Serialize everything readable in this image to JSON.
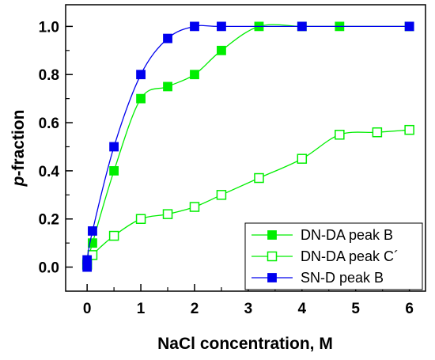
{
  "chart_data": {
    "type": "line",
    "xlabel": "NaCl concentration, M",
    "ylabel_italic": "p",
    "ylabel_rest": "-fraction",
    "xlim": [
      -0.4,
      6.3
    ],
    "ylim": [
      -0.1,
      1.09
    ],
    "x_ticks": [
      0,
      1,
      2,
      3,
      4,
      5,
      6
    ],
    "x_tick_labels": [
      "0",
      "1",
      "2",
      "3",
      "4",
      "5",
      "6"
    ],
    "y_ticks": [
      0.0,
      0.2,
      0.4,
      0.6,
      0.8,
      1.0
    ],
    "y_tick_labels": [
      "0.0",
      "0.2",
      "0.4",
      "0.6",
      "0.8",
      "1.0"
    ],
    "grid": false,
    "legend_position": "bottom-right",
    "series": [
      {
        "name": "DN-DA peak B",
        "color": "#00ee00",
        "marker": "filled-square",
        "points": [
          [
            0,
            0.02
          ],
          [
            0.1,
            0.1
          ],
          [
            0.5,
            0.4
          ],
          [
            1.0,
            0.7
          ],
          [
            1.5,
            0.75
          ],
          [
            2.0,
            0.8
          ],
          [
            2.5,
            0.9
          ],
          [
            3.2,
            1.0
          ],
          [
            4.0,
            1.0
          ],
          [
            4.7,
            1.0
          ],
          [
            6.0,
            1.0
          ]
        ]
      },
      {
        "name": "DN-DA peak C´",
        "color": "#00ee00",
        "marker": "open-square",
        "points": [
          [
            0,
            0.01
          ],
          [
            0.1,
            0.05
          ],
          [
            0.5,
            0.13
          ],
          [
            1.0,
            0.2
          ],
          [
            1.5,
            0.22
          ],
          [
            2.0,
            0.25
          ],
          [
            2.5,
            0.3
          ],
          [
            3.2,
            0.37
          ],
          [
            4.0,
            0.45
          ],
          [
            4.7,
            0.55
          ],
          [
            5.4,
            0.56
          ],
          [
            6.0,
            0.57
          ]
        ]
      },
      {
        "name": "SN-D peak B",
        "color": "#0000ee",
        "marker": "filled-square",
        "points": [
          [
            0,
            0.0
          ],
          [
            0,
            0.03
          ],
          [
            0.1,
            0.15
          ],
          [
            0.5,
            0.5
          ],
          [
            1.0,
            0.8
          ],
          [
            1.5,
            0.95
          ],
          [
            2.0,
            1.0
          ],
          [
            2.5,
            1.0
          ],
          [
            4.0,
            1.0
          ],
          [
            6.0,
            1.0
          ]
        ]
      }
    ]
  }
}
